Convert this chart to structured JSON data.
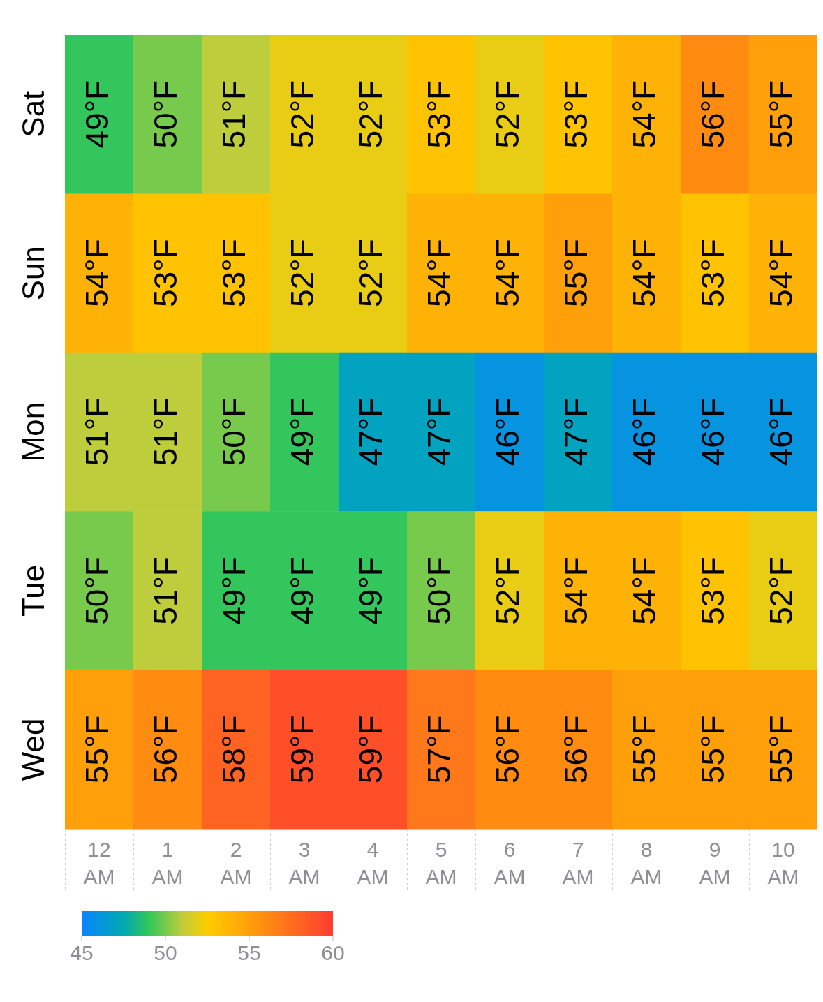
{
  "chart_data": {
    "type": "heatmap",
    "categories": [
      "12 AM",
      "1 AM",
      "2 AM",
      "3 AM",
      "4 AM",
      "5 AM",
      "6 AM",
      "7 AM",
      "8 AM",
      "9 AM",
      "10 AM"
    ],
    "y_categories": [
      "Sat",
      "Sun",
      "Mon",
      "Tue",
      "Wed"
    ],
    "cells": [
      [
        49,
        50,
        51,
        52,
        52,
        53,
        52,
        53,
        54,
        56,
        55
      ],
      [
        54,
        53,
        53,
        52,
        52,
        54,
        54,
        55,
        54,
        53,
        54
      ],
      [
        51,
        51,
        50,
        49,
        47,
        47,
        46,
        47,
        46,
        46,
        46
      ],
      [
        50,
        51,
        49,
        49,
        49,
        50,
        52,
        54,
        54,
        53,
        52
      ],
      [
        55,
        56,
        58,
        59,
        59,
        57,
        56,
        56,
        55,
        55,
        55
      ]
    ],
    "cell_labels": [
      [
        "49°F",
        "50°F",
        "51°F",
        "52°F",
        "52°F",
        "53°F",
        "52°F",
        "53°F",
        "54°F",
        "56°F",
        "55°F"
      ],
      [
        "54°F",
        "53°F",
        "53°F",
        "52°F",
        "52°F",
        "54°F",
        "54°F",
        "55°F",
        "54°F",
        "53°F",
        "54°F"
      ],
      [
        "51°F",
        "51°F",
        "50°F",
        "49°F",
        "47°F",
        "47°F",
        "46°F",
        "47°F",
        "46°F",
        "46°F",
        "46°F"
      ],
      [
        "50°F",
        "51°F",
        "49°F",
        "49°F",
        "49°F",
        "50°F",
        "52°F",
        "54°F",
        "54°F",
        "53°F",
        "52°F"
      ],
      [
        "55°F",
        "56°F",
        "58°F",
        "59°F",
        "59°F",
        "57°F",
        "56°F",
        "56°F",
        "55°F",
        "55°F",
        "55°F"
      ]
    ],
    "clim": [
      45,
      60
    ],
    "cticks": [
      45,
      50,
      55,
      60
    ]
  }
}
